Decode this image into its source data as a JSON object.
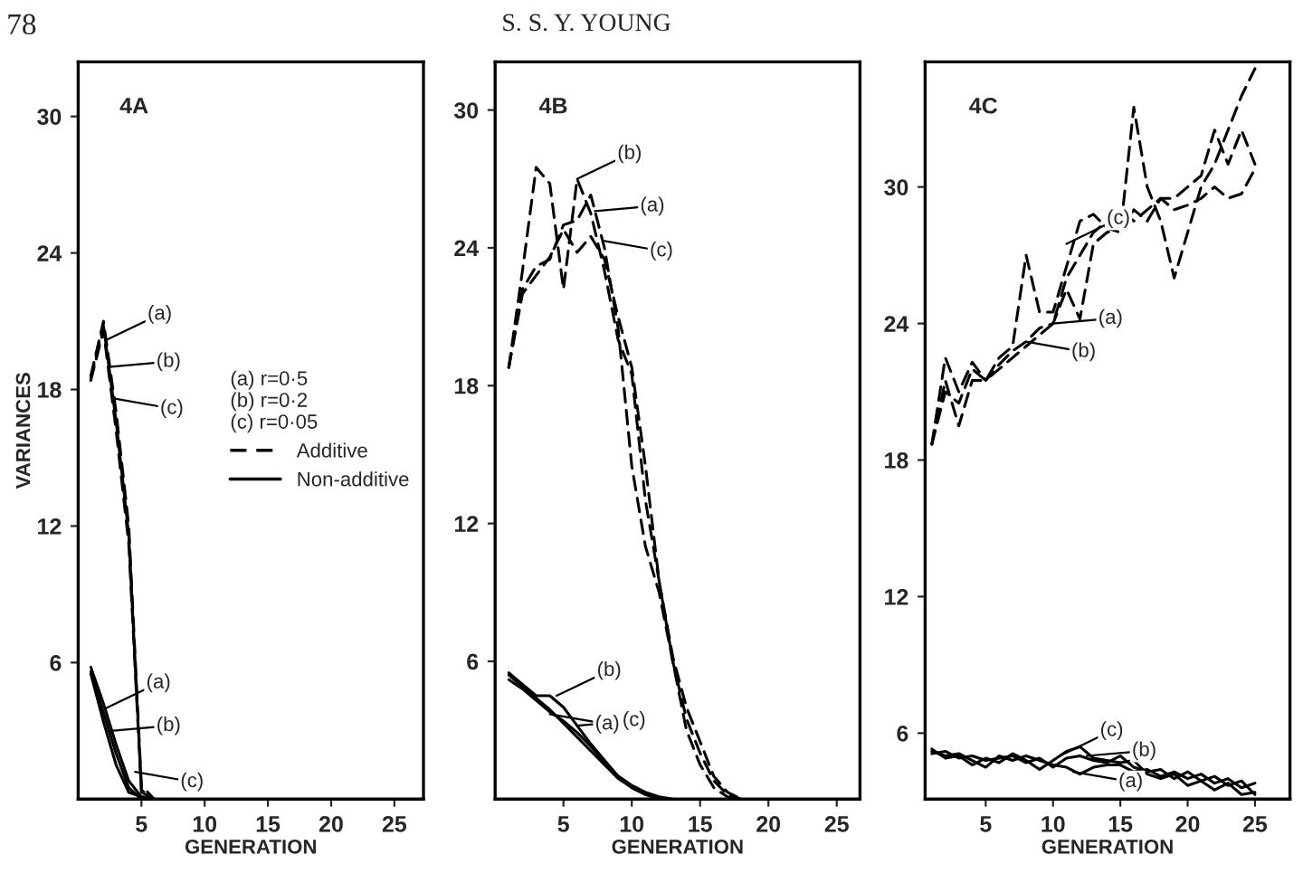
{
  "chart_data": [
    {
      "type": "line",
      "xlabel": "GENERATION",
      "ylabel": "VARIANCES",
      "xlim": [
        0,
        27.3
      ],
      "ylim": [
        0,
        32.4
      ],
      "xticks": [
        5,
        10,
        15,
        20,
        25
      ],
      "yticks": [
        6,
        12,
        18,
        24,
        30
      ],
      "grid": false,
      "legend": "center right",
      "legend_title": "(a) r=0·5\n(b) r=0·2\n(c) r=0·05",
      "series": [
        {
          "name": "Additive",
          "color": "#000000",
          "line_style": "dashed",
          "x": [
            1,
            2,
            3,
            4,
            5,
            6
          ],
          "values": [
            18.6,
            21.0,
            17.0,
            12.0,
            0.6,
            0
          ]
        },
        {
          "color": "#000000",
          "line_style": "dashed",
          "x": [
            1,
            2,
            3,
            4,
            5,
            6
          ],
          "values": [
            18.5,
            20.8,
            16.6,
            11.6,
            0.4,
            0
          ]
        },
        {
          "color": "#000000",
          "line_style": "dashed",
          "x": [
            1,
            2,
            3,
            4,
            5,
            6
          ],
          "values": [
            18.4,
            20.6,
            16.2,
            11.2,
            0.3,
            0
          ]
        },
        {
          "name": "Non-additive",
          "color": "#000000",
          "line_style": "solid",
          "x": [
            1,
            2,
            3,
            4,
            5,
            6
          ],
          "values": [
            5.8,
            4.2,
            2.4,
            0.8,
            0.1,
            0
          ]
        },
        {
          "color": "#000000",
          "line_style": "solid",
          "x": [
            1,
            2,
            3,
            4,
            5,
            6
          ],
          "values": [
            5.6,
            3.8,
            2.0,
            0.5,
            0,
            0
          ]
        },
        {
          "color": "#000000",
          "line_style": "solid",
          "x": [
            1,
            2,
            3,
            4,
            5,
            6
          ],
          "values": [
            5.5,
            3.4,
            1.5,
            0.3,
            0.1,
            0
          ]
        }
      ],
      "annotations": [
        "4A",
        "78",
        "S. S. Y. YOUNG",
        {
          "text": "(a)",
          "x": 2.3,
          "y": 20.2
        },
        {
          "text": "(b)",
          "x": 2.6,
          "y": 19.0
        },
        {
          "text": "(c)",
          "x": 2.9,
          "y": 17.6
        },
        {
          "text": "(a)",
          "x": 2.2,
          "y": 4.0
        },
        {
          "text": "(b)",
          "x": 2.6,
          "y": 3.0
        },
        {
          "text": "(c)",
          "x": 4.5,
          "y": 1.2
        }
      ]
    },
    {
      "type": "line",
      "xlabel": "GENERATION",
      "xlim": [
        0,
        26.7
      ],
      "ylim": [
        0,
        32.1
      ],
      "xticks": [
        5,
        10,
        15,
        20,
        25
      ],
      "yticks": [
        6,
        12,
        18,
        24,
        30
      ],
      "grid": false,
      "series": [
        {
          "color": "#000000",
          "line_style": "dashed",
          "x": [
            1,
            2,
            3,
            4,
            5,
            6,
            7,
            8,
            9,
            10,
            11,
            12,
            13,
            14,
            15,
            16,
            17,
            18
          ],
          "values": [
            18.8,
            23.0,
            27.5,
            26.8,
            22.2,
            27.0,
            25.5,
            23.0,
            20.0,
            18.5,
            13.0,
            9.5,
            6.0,
            3.5,
            2.0,
            0.8,
            0.2,
            0
          ]
        },
        {
          "color": "#000000",
          "line_style": "dashed",
          "x": [
            1,
            2,
            3,
            4,
            5,
            6,
            7,
            8,
            9,
            10,
            11,
            12,
            13,
            14,
            15,
            16,
            17,
            18
          ],
          "values": [
            18.8,
            22.2,
            23.2,
            23.5,
            25.0,
            25.2,
            26.3,
            24.0,
            20.5,
            14.5,
            11.0,
            9.0,
            6.0,
            3.0,
            1.5,
            0.5,
            0.1,
            0
          ]
        },
        {
          "color": "#000000",
          "line_style": "dashed",
          "x": [
            1,
            2,
            3,
            4,
            5,
            6,
            7,
            8,
            9,
            10,
            11,
            12,
            13,
            14,
            15,
            16,
            17,
            18
          ],
          "values": [
            18.8,
            22.0,
            22.8,
            23.6,
            24.8,
            23.8,
            24.5,
            23.5,
            21.0,
            18.8,
            14.5,
            9.5,
            6.2,
            4.0,
            2.5,
            1.0,
            0.3,
            0
          ]
        },
        {
          "color": "#000000",
          "line_style": "solid",
          "x": [
            1,
            2,
            3,
            4,
            5,
            6,
            7,
            8,
            9,
            10,
            11,
            12
          ],
          "values": [
            5.4,
            4.9,
            4.4,
            3.9,
            3.3,
            2.7,
            2.1,
            1.5,
            0.9,
            0.5,
            0.2,
            0
          ]
        },
        {
          "color": "#000000",
          "line_style": "solid",
          "x": [
            1,
            2,
            3,
            4,
            5,
            6,
            7,
            8,
            9,
            10,
            11,
            12,
            13
          ],
          "values": [
            5.5,
            5.0,
            4.5,
            4.5,
            4.0,
            3.2,
            2.4,
            1.7,
            1.0,
            0.6,
            0.3,
            0.1,
            0
          ]
        },
        {
          "color": "#000000",
          "line_style": "solid",
          "x": [
            1,
            2,
            3,
            4,
            5,
            6,
            7,
            8,
            9,
            10,
            11
          ],
          "values": [
            5.2,
            4.8,
            4.3,
            3.8,
            3.4,
            2.9,
            2.3,
            1.6,
            1.0,
            0.5,
            0.2
          ]
        }
      ],
      "annotations": [
        "4B",
        {
          "text": "(b)",
          "x": 6.0,
          "y": 27.0
        },
        {
          "text": "(a)",
          "x": 7.3,
          "y": 25.6
        },
        {
          "text": "(c)",
          "x": 8.0,
          "y": 24.3
        },
        {
          "text": "(b)",
          "x": 4.5,
          "y": 4.5
        },
        {
          "text": "(c)",
          "x": 6.0,
          "y": 3.2
        },
        {
          "text": "(a)",
          "x": 4.0,
          "y": 3.7
        }
      ]
    },
    {
      "type": "line",
      "xlabel": "GENERATION",
      "xlim": [
        0.5,
        27.6
      ],
      "ylim": [
        3.1,
        35.5
      ],
      "xticks": [
        5,
        10,
        15,
        20,
        25
      ],
      "yticks": [
        6,
        12,
        18,
        24,
        30
      ],
      "grid": false,
      "series": [
        {
          "color": "#000000",
          "line_style": "dashed",
          "x": [
            1,
            2,
            3,
            4,
            5,
            6,
            7,
            8,
            9,
            10,
            11,
            12,
            13,
            14,
            15,
            16,
            17,
            18,
            19,
            20,
            21,
            22,
            23,
            24,
            25
          ],
          "values": [
            18.7,
            21.5,
            19.5,
            21.5,
            21.5,
            22.5,
            23.0,
            27.0,
            24.5,
            24.5,
            26.5,
            28.5,
            28.8,
            28.2,
            28.0,
            33.5,
            30.0,
            28.5,
            26.0,
            28.0,
            30.0,
            31.0,
            32.5,
            34.0,
            35.2
          ]
        },
        {
          "color": "#000000",
          "line_style": "dashed",
          "x": [
            1,
            2,
            3,
            4,
            5,
            6,
            7,
            8,
            9,
            10,
            11,
            12,
            13,
            14,
            15,
            16,
            17,
            18,
            19,
            20,
            21,
            22,
            23,
            24,
            25
          ],
          "values": [
            18.7,
            21.0,
            20.5,
            22.0,
            21.5,
            22.0,
            22.5,
            23.0,
            23.5,
            24.0,
            26.0,
            27.0,
            28.0,
            28.5,
            29.0,
            28.5,
            29.0,
            29.5,
            29.5,
            30.0,
            30.5,
            32.5,
            31.0,
            32.5,
            31.0
          ]
        },
        {
          "color": "#000000",
          "line_style": "dashed",
          "x": [
            1,
            2,
            3,
            4,
            5,
            6,
            7,
            8,
            9,
            10,
            11,
            12,
            13,
            14,
            15,
            16,
            17,
            18,
            19,
            20,
            21,
            22,
            23,
            24,
            25
          ],
          "values": [
            18.7,
            22.5,
            21.0,
            22.3,
            21.5,
            22.2,
            22.8,
            23.2,
            23.8,
            24.0,
            25.5,
            24.2,
            27.5,
            28.0,
            28.2,
            29.0,
            28.5,
            29.5,
            29.0,
            29.2,
            29.5,
            30.0,
            29.5,
            29.7,
            30.8
          ]
        },
        {
          "color": "#000000",
          "line_style": "solid",
          "x": [
            1,
            2,
            3,
            4,
            5,
            6,
            7,
            8,
            9,
            10,
            11,
            12,
            13,
            14,
            15,
            16,
            17,
            18,
            19,
            20,
            21,
            22,
            23,
            24,
            25
          ],
          "values": [
            5.2,
            5.0,
            5.1,
            4.8,
            4.5,
            5.0,
            4.8,
            5.0,
            4.8,
            4.6,
            4.5,
            4.2,
            4.5,
            4.6,
            4.6,
            4.3,
            4.4,
            4.1,
            4.3,
            4.0,
            4.2,
            3.8,
            4.0,
            3.6,
            3.8
          ]
        },
        {
          "color": "#000000",
          "line_style": "solid",
          "x": [
            1,
            2,
            3,
            4,
            5,
            6,
            7,
            8,
            9,
            10,
            11,
            12,
            13,
            14,
            15,
            16,
            17,
            18,
            19,
            20,
            21,
            22,
            23,
            24,
            25
          ],
          "values": [
            5.1,
            5.2,
            4.9,
            5.0,
            4.8,
            4.9,
            5.0,
            4.7,
            4.9,
            4.5,
            4.9,
            5.0,
            4.8,
            4.7,
            5.0,
            4.5,
            4.3,
            4.4,
            4.0,
            4.3,
            3.9,
            4.1,
            3.7,
            3.9,
            3.3
          ]
        },
        {
          "color": "#000000",
          "line_style": "solid",
          "x": [
            1,
            2,
            3,
            4,
            5,
            6,
            7,
            8,
            9,
            10,
            11,
            12,
            13,
            14,
            15,
            16,
            17,
            18,
            19,
            20,
            21,
            22,
            23,
            24,
            25
          ],
          "values": [
            5.3,
            4.9,
            5.0,
            4.6,
            4.9,
            4.7,
            5.1,
            4.8,
            4.4,
            4.8,
            5.2,
            5.4,
            4.9,
            4.8,
            4.7,
            4.8,
            4.2,
            4.0,
            4.2,
            3.7,
            3.9,
            3.5,
            3.8,
            3.3,
            3.4
          ]
        }
      ],
      "annotations": [
        "4C",
        {
          "text": "(c)",
          "x": 11.0,
          "y": 27.5
        },
        {
          "text": "(a)",
          "x": 10.0,
          "y": 24.0
        },
        {
          "text": "(b)",
          "x": 8.0,
          "y": 23.2
        },
        {
          "text": "(c)",
          "x": 10.5,
          "y": 5.0
        },
        {
          "text": "(b)",
          "x": 12.5,
          "y": 5.0
        },
        {
          "text": "(a)",
          "x": 11.5,
          "y": 4.3
        }
      ]
    }
  ]
}
